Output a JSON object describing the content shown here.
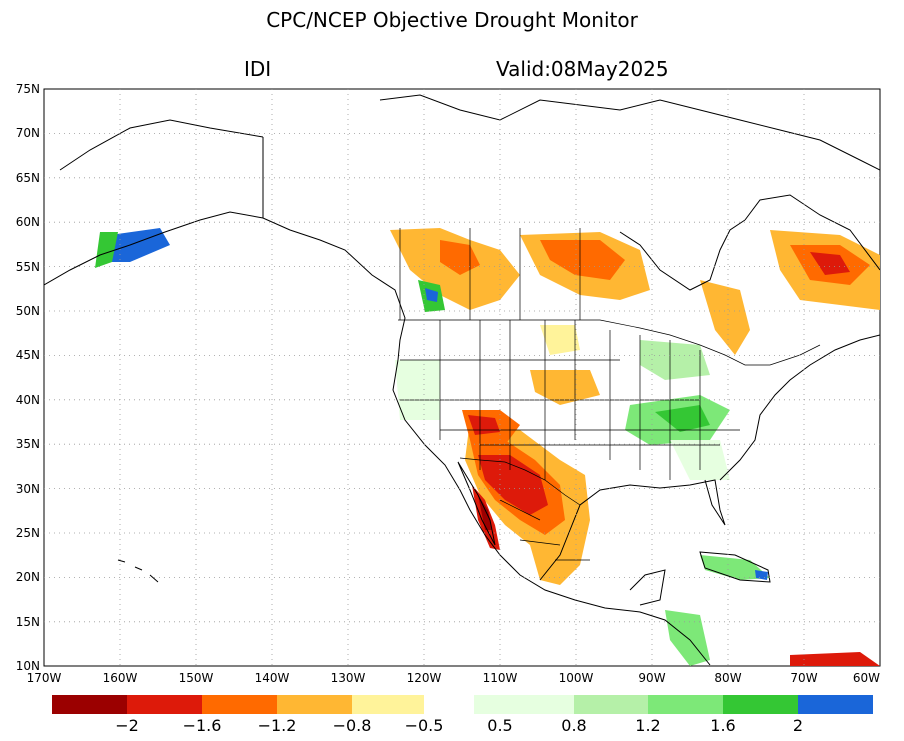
{
  "header": {
    "title": "CPC/NCEP Objective Drought Monitor",
    "variable": "IDI",
    "valid": "Valid:08May2025"
  },
  "map": {
    "lon_range": [
      -170,
      -60
    ],
    "lat_range": [
      10,
      75
    ],
    "lat_ticks": [
      "75N",
      "70N",
      "65N",
      "60N",
      "55N",
      "50N",
      "45N",
      "40N",
      "35N",
      "30N",
      "25N",
      "20N",
      "15N",
      "10N"
    ],
    "lon_ticks": [
      "170W",
      "160W",
      "150W",
      "140W",
      "130W",
      "120W",
      "110W",
      "100W",
      "90W",
      "80W",
      "70W",
      "60W"
    ]
  },
  "legend": {
    "colors": [
      "#9b0000",
      "#dd1a0a",
      "#ff6a00",
      "#ffb733",
      "#fff39a",
      "#ffffff",
      "#e6ffe0",
      "#b5f0a8",
      "#7de878",
      "#34c734",
      "#1a66d9"
    ],
    "labels": [
      "−2",
      "−1.6",
      "−1.2",
      "−0.8",
      "−0.5",
      "0.5",
      "0.8",
      "1.2",
      "1.6",
      "2"
    ]
  }
}
